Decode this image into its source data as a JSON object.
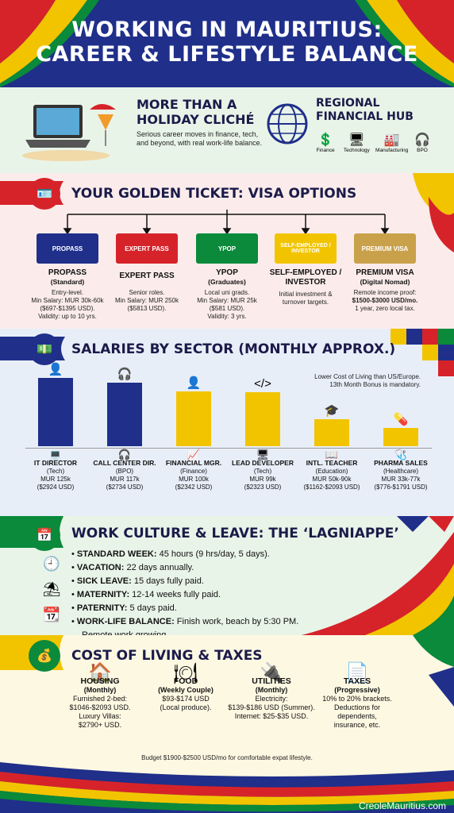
{
  "header": {
    "title_line1": "WORKING IN MAURITIUS:",
    "title_line2": "CAREER & LIFESTYLE BALANCE"
  },
  "intro": {
    "left_title_line1": "MORE THAN A",
    "left_title_line2": "HOLIDAY CLICHÉ",
    "left_text": "Serious career moves in finance, tech, and beyond, with real work-life balance.",
    "right_title_line1": "REGIONAL",
    "right_title_line2": "FINANCIAL HUB",
    "sectors": [
      "Finance",
      "Technology",
      "Manufacturing",
      "BPO"
    ]
  },
  "visa": {
    "title": "YOUR GOLDEN TICKET: VISA OPTIONS",
    "cards": [
      {
        "card_label": "PROPASS",
        "name": "PROPASS",
        "sub": "(Standard)",
        "desc": [
          "Entry-level.",
          "Min Salary: MUR 30k-60k",
          "($697-$1395 USD).",
          "Validity: up to 10 yrs."
        ],
        "color": "#1f2f8a"
      },
      {
        "card_label": "EXPERT PASS",
        "name": "EXPERT PASS",
        "sub": "",
        "desc": [
          "Senior roles.",
          "Min Salary: MUR 250k",
          "($5813 USD)."
        ],
        "color": "#d6232a"
      },
      {
        "card_label": "YPOP",
        "name": "YPOP",
        "sub": "(Graduates)",
        "desc": [
          "Local uni grads.",
          "Min Salary: MUR 25k",
          "($581 USD).",
          "Validity: 3 yrs."
        ],
        "color": "#0a8a3a"
      },
      {
        "card_label": "SELF-EMPLOYED / INVESTOR",
        "name": "SELF-EMPLOYED /",
        "name2": "INVESTOR",
        "sub": "",
        "desc": [
          "Initial investment &",
          "turnover targets."
        ],
        "color": "#f2c400"
      },
      {
        "card_label": "PREMIUM VISA",
        "name": "PREMIUM VISA",
        "sub": "(Digital Nomad)",
        "desc": [
          "Remote income proof:",
          "$1500-$3000 USD/mo.",
          "1 year, zero local tax."
        ],
        "color": "#c9a14a"
      }
    ]
  },
  "salaries": {
    "title": "SALARIES BY SECTOR (MONTHLY APPROX.)",
    "note_line1": "Lower Cost of Living than US/Europe.",
    "note_line2": "13th Month Bonus is mandatory.",
    "chart_data": {
      "type": "bar",
      "categories": [
        "IT DIRECTOR",
        "CALL CENTER DIR.",
        "FINANCIAL MGR.",
        "LEAD DEVELOPER",
        "INTL. TEACHER",
        "PHARMA SALES"
      ],
      "values": [
        125,
        117,
        100,
        99,
        50,
        33
      ],
      "unit": "MUR k",
      "colors": [
        "#1f2f8a",
        "#1f2f8a",
        "#f2c400",
        "#f2c400",
        "#f2c400",
        "#f2c400"
      ]
    },
    "labels": [
      {
        "role": "IT DIRECTOR",
        "sector": "(Tech)",
        "mur": "MUR 125k",
        "usd": "($2924 USD)"
      },
      {
        "role": "CALL CENTER DIR.",
        "sector": "(BPO)",
        "mur": "MUR 117k",
        "usd": "($2734 USD)"
      },
      {
        "role": "FINANCIAL MGR.",
        "sector": "(Finance)",
        "mur": "MUR 100k",
        "usd": "($2342 USD)"
      },
      {
        "role": "LEAD DEVELOPER",
        "sector": "(Tech)",
        "mur": "MUR 99k",
        "usd": "($2323 USD)"
      },
      {
        "role": "INTL. TEACHER",
        "sector": "(Education)",
        "mur": "MUR 50k-90k",
        "usd": "($1162-$2093 USD)"
      },
      {
        "role": "PHARMA SALES",
        "sector": "(Healthcare)",
        "mur": "MUR 33k-77k",
        "usd": "($776-$1791 USD)"
      }
    ]
  },
  "culture": {
    "title": "WORK CULTURE & LEAVE: THE ‘LAGNIAPPE’",
    "items": [
      {
        "label": "STANDARD WEEK:",
        "text": " 45 hours (9 hrs/day, 5 days)."
      },
      {
        "label": "VACATION:",
        "text": " 22 days annually."
      },
      {
        "label": "SICK LEAVE:",
        "text": " 15 days fully paid."
      },
      {
        "label": "MATERNITY:",
        "text": " 12-14 weeks fully paid."
      },
      {
        "label": "PATERNITY:",
        "text": " 5 days paid."
      },
      {
        "label": "WORK-LIFE BALANCE:",
        "text": " Finish work, beach by 5:30 PM."
      }
    ],
    "last_line": "Remote work growing."
  },
  "cost": {
    "title": "COST OF LIVING & TAXES",
    "columns": [
      {
        "head": "HOUSING",
        "sub": "(Monthly)",
        "lines": [
          "Furnished 2-bed:",
          "$1046-$2093 USD.",
          "Luxury Villas:",
          "$2790+ USD."
        ]
      },
      {
        "head": "FOOD",
        "sub": "(Weekly Couple)",
        "lines": [
          "$93-$174 USD",
          "(Local produce)."
        ]
      },
      {
        "head": "UTILITIES",
        "sub": "(Monthly)",
        "lines": [
          "Electricity:",
          "$139-$186 USD (Summer).",
          "Internet: $25-$35 USD."
        ]
      },
      {
        "head": "TAXES",
        "sub": "(Progressive)",
        "lines": [
          "10% to 20% brackets.",
          "Deductions for",
          "dependents,",
          "insurance, etc."
        ]
      }
    ],
    "budget": "Budget $1900-$2500 USD/mo for comfortable expat lifestyle."
  },
  "footer": {
    "site": "CreoleMauritius.com"
  }
}
